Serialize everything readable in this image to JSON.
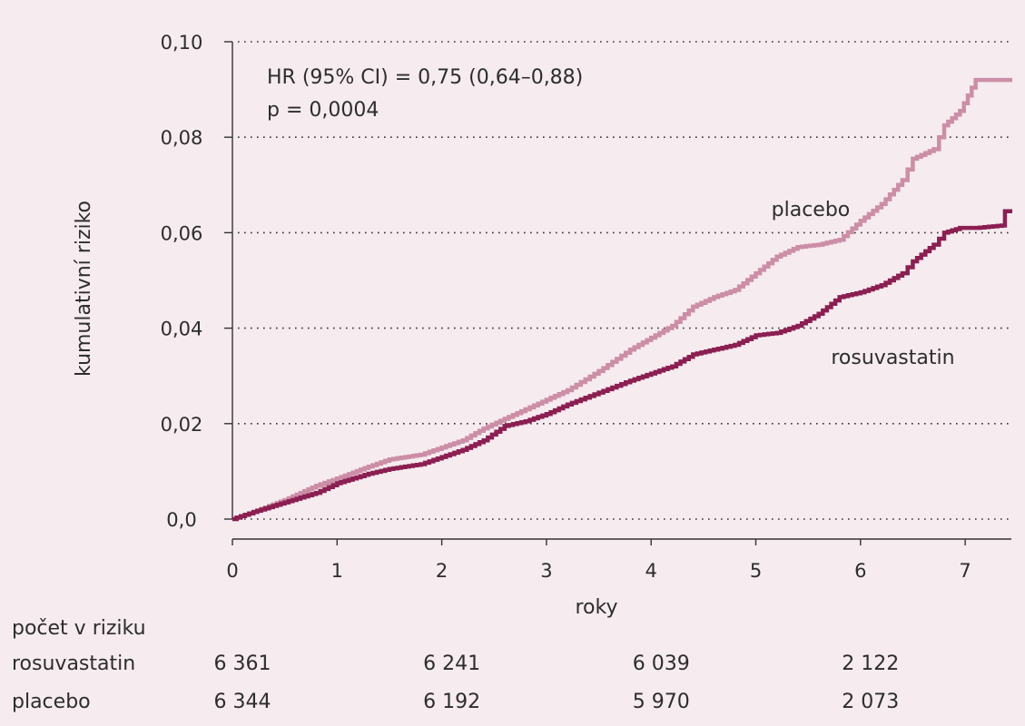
{
  "chart_data": {
    "type": "line",
    "xlabel": "roky",
    "ylabel": "kumulativní riziko",
    "xlim": [
      0,
      7.45
    ],
    "ylim": [
      0,
      0.1
    ],
    "x_ticks": [
      0,
      1,
      2,
      3,
      4,
      5,
      6,
      7
    ],
    "x_tick_labels": [
      "0",
      "1",
      "2",
      "3",
      "4",
      "5",
      "6",
      "7"
    ],
    "y_ticks": [
      0,
      0.02,
      0.04,
      0.06,
      0.08,
      0.1
    ],
    "y_tick_labels": [
      "0,0",
      "0,02",
      "0,04",
      "0,06",
      "0,08",
      "0,10"
    ],
    "grid": "horizontal-dotted",
    "annotations": {
      "hr": "HR (95% CI) = 0,75 (0,64–0,88)",
      "p": "p = 0,0004"
    },
    "series": [
      {
        "name": "placebo",
        "color": "#cc8ea6",
        "points": [
          [
            0,
            0
          ],
          [
            0.2,
            0.0015
          ],
          [
            0.5,
            0.004
          ],
          [
            0.8,
            0.007
          ],
          [
            1.0,
            0.0085
          ],
          [
            1.3,
            0.011
          ],
          [
            1.5,
            0.0125
          ],
          [
            1.8,
            0.0135
          ],
          [
            2.0,
            0.015
          ],
          [
            2.2,
            0.0165
          ],
          [
            2.4,
            0.019
          ],
          [
            2.6,
            0.021
          ],
          [
            2.8,
            0.023
          ],
          [
            3.0,
            0.025
          ],
          [
            3.2,
            0.027
          ],
          [
            3.5,
            0.031
          ],
          [
            3.8,
            0.0355
          ],
          [
            4.0,
            0.038
          ],
          [
            4.2,
            0.0405
          ],
          [
            4.4,
            0.0445
          ],
          [
            4.6,
            0.0465
          ],
          [
            4.8,
            0.048
          ],
          [
            5.0,
            0.0515
          ],
          [
            5.2,
            0.055
          ],
          [
            5.4,
            0.057
          ],
          [
            5.6,
            0.0575
          ],
          [
            5.8,
            0.0585
          ],
          [
            6.0,
            0.0625
          ],
          [
            6.2,
            0.066
          ],
          [
            6.4,
            0.071
          ],
          [
            6.5,
            0.0755
          ],
          [
            6.7,
            0.0775
          ],
          [
            6.8,
            0.0825
          ],
          [
            6.95,
            0.0855
          ],
          [
            7.1,
            0.092
          ],
          [
            7.45,
            0.092
          ]
        ]
      },
      {
        "name": "rosuvastatin",
        "color": "#8b1f52",
        "points": [
          [
            0,
            0
          ],
          [
            0.2,
            0.0015
          ],
          [
            0.5,
            0.0035
          ],
          [
            0.8,
            0.0055
          ],
          [
            1.0,
            0.0075
          ],
          [
            1.3,
            0.0095
          ],
          [
            1.5,
            0.0105
          ],
          [
            1.8,
            0.0115
          ],
          [
            2.0,
            0.013
          ],
          [
            2.2,
            0.0145
          ],
          [
            2.4,
            0.0165
          ],
          [
            2.6,
            0.0195
          ],
          [
            2.8,
            0.0205
          ],
          [
            3.0,
            0.022
          ],
          [
            3.2,
            0.024
          ],
          [
            3.5,
            0.0265
          ],
          [
            3.8,
            0.029
          ],
          [
            4.0,
            0.0305
          ],
          [
            4.2,
            0.032
          ],
          [
            4.4,
            0.0345
          ],
          [
            4.6,
            0.0355
          ],
          [
            4.8,
            0.0365
          ],
          [
            5.0,
            0.0385
          ],
          [
            5.2,
            0.039
          ],
          [
            5.4,
            0.0405
          ],
          [
            5.6,
            0.043
          ],
          [
            5.8,
            0.0465
          ],
          [
            6.0,
            0.0475
          ],
          [
            6.2,
            0.049
          ],
          [
            6.4,
            0.0515
          ],
          [
            6.5,
            0.054
          ],
          [
            6.7,
            0.0575
          ],
          [
            6.8,
            0.06
          ],
          [
            6.95,
            0.061
          ],
          [
            7.1,
            0.061
          ],
          [
            7.35,
            0.0615
          ],
          [
            7.38,
            0.0645
          ],
          [
            7.45,
            0.0645
          ]
        ]
      }
    ],
    "series_labels": [
      {
        "name": "placebo",
        "x": 5.9,
        "y": 0.0635
      },
      {
        "name": "rosuvastatin",
        "x": 6.9,
        "y": 0.0325
      }
    ],
    "risk_table": {
      "title": "počet v riziku",
      "x": [
        0,
        2,
        4,
        6
      ],
      "rows": [
        {
          "label": "rosuvastatin",
          "values": [
            "6 361",
            "6 241",
            "6 039",
            "2 122"
          ]
        },
        {
          "label": "placebo",
          "values": [
            "6 344",
            "6 192",
            "5 970",
            "2 073"
          ]
        }
      ]
    }
  }
}
